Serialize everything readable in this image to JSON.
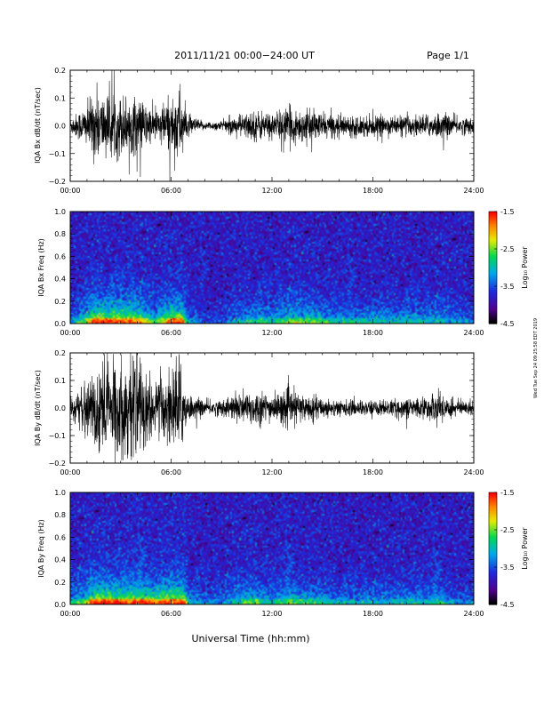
{
  "header": {
    "title": "2011/11/21  00:00−24:00 UT",
    "page": "Page 1/1"
  },
  "footer": {
    "xlabel": "Universal Time (hh:mm)",
    "side_note": "Wed Tue Sep 24 09:25:58 EDT 2019"
  },
  "time_ticks": [
    "00:00",
    "06:00",
    "12:00",
    "18:00",
    "24:00"
  ],
  "colorbar": {
    "label": "Log₁₀ Power",
    "ticks": [
      "-1.5",
      "-2.5",
      "-3.5",
      "-4.5"
    ],
    "range": [
      -4.5,
      -1.5
    ]
  },
  "chart_data": [
    {
      "type": "line",
      "ylabel": "IQA Bx dB/dt (nT/sec)",
      "xlim": [
        0,
        24
      ],
      "ylim": [
        -0.2,
        0.2
      ],
      "yticks": [
        "0.2",
        "0.1",
        "0.0",
        "−0.1",
        "−0.2"
      ],
      "envelope": {
        "hours": [
          0,
          1,
          1.5,
          2,
          3,
          4,
          5,
          6,
          6.5,
          7,
          8,
          9,
          10,
          11,
          12,
          13,
          14,
          15,
          16,
          17,
          18,
          19,
          20,
          21,
          22,
          23,
          24
        ],
        "amplitude": [
          0.03,
          0.08,
          0.14,
          0.12,
          0.12,
          0.11,
          0.06,
          0.11,
          0.15,
          0.04,
          0.015,
          0.02,
          0.04,
          0.06,
          0.05,
          0.07,
          0.06,
          0.05,
          0.04,
          0.04,
          0.04,
          0.035,
          0.04,
          0.04,
          0.05,
          0.035,
          0.03
        ]
      }
    },
    {
      "type": "heatmap",
      "ylabel": "IQA Bx Freq (Hz)",
      "xlim": [
        0,
        24
      ],
      "ylim": [
        0,
        1
      ],
      "yticks": [
        "1.0",
        "0.8",
        "0.6",
        "0.4",
        "0.2",
        "0.0"
      ],
      "zlabel": "Log₁₀ Power",
      "zlim": [
        -4.5,
        -1.5
      ]
    },
    {
      "type": "line",
      "ylabel": "IQA By dB/dt (nT/sec)",
      "xlim": [
        0,
        24
      ],
      "ylim": [
        -0.2,
        0.2
      ],
      "yticks": [
        "0.2",
        "0.1",
        "0.0",
        "−0.1",
        "−0.2"
      ],
      "envelope": {
        "hours": [
          0,
          1,
          1.5,
          2,
          3,
          4,
          5,
          6,
          6.5,
          7,
          8,
          9,
          10,
          11,
          12,
          13,
          14,
          15,
          16,
          17,
          18,
          19,
          20,
          21,
          22,
          23,
          24
        ],
        "amplitude": [
          0.05,
          0.08,
          0.2,
          0.2,
          0.18,
          0.2,
          0.1,
          0.15,
          0.2,
          0.05,
          0.03,
          0.03,
          0.06,
          0.07,
          0.05,
          0.07,
          0.05,
          0.04,
          0.03,
          0.03,
          0.03,
          0.03,
          0.04,
          0.04,
          0.06,
          0.03,
          0.03
        ]
      }
    },
    {
      "type": "heatmap",
      "ylabel": "IQA By Freq (Hz)",
      "xlim": [
        0,
        24
      ],
      "ylim": [
        0,
        1
      ],
      "yticks": [
        "1.0",
        "0.8",
        "0.6",
        "0.4",
        "0.2",
        "0.0"
      ],
      "zlabel": "Log₁₀ Power",
      "zlim": [
        -4.5,
        -1.5
      ]
    }
  ]
}
